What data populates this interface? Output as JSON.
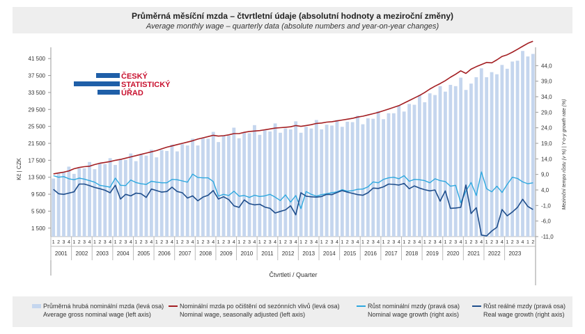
{
  "title": "Průměrná měsíční mzda – čtvrtletní údaje (absolutní hodnoty a meziroční změny)",
  "subtitle": "Average monthly wage – quarterly data (absolute numbers and year-on-year changes)",
  "logo": {
    "line1": "ČESKÝ",
    "line2": "STATISTICKÝ",
    "line3": "ÚŘAD"
  },
  "colors": {
    "bars": "#c5d6ee",
    "sa_line": "#a31e22",
    "nominal_growth": "#2ea8df",
    "real_growth": "#1f4e8c"
  },
  "chart_data": {
    "type": "bar+line",
    "years": [
      "2001",
      "2002",
      "2003",
      "2004",
      "2005",
      "2006",
      "2007",
      "2008",
      "2009",
      "2010",
      "2011",
      "2012",
      "2013",
      "2014",
      "2015",
      "2016",
      "2017",
      "2018",
      "2019",
      "2020",
      "2021",
      "2022",
      "2023"
    ],
    "quarter_labels": [
      "1",
      "2",
      "3",
      "4"
    ],
    "left_axis": {
      "label": "Kč | CZK",
      "ylim": [
        -500,
        43500
      ],
      "ticks": [
        "1 500",
        "5 500",
        "9 500",
        "13 500",
        "17 500",
        "21 500",
        "25 500",
        "29 500",
        "33 500",
        "37 500",
        "41 500"
      ]
    },
    "right_axis": {
      "label": "Meziroční tempo růstu (v %) | Y-o-y growth rate (%)",
      "ylim": [
        -11,
        49
      ],
      "ticks": [
        "-11,0",
        "-6,0",
        "-1,0",
        "4,0",
        "9,0",
        "14,0",
        "19,0",
        "24,0",
        "29,0",
        "34,0",
        "39,0",
        "44,0"
      ]
    },
    "xlabel": "Čtvrtletí / Quarter",
    "series": [
      {
        "name": "Průměrná hrubá nominální mzda (levá osa)",
        "name_en": "Average gross nominal wage (left axis)",
        "kind": "bar",
        "axis": "left",
        "values": [
          13200,
          14500,
          14700,
          16000,
          14300,
          15600,
          15600,
          17100,
          15400,
          16800,
          16600,
          18000,
          16400,
          17800,
          17600,
          19100,
          17300,
          18800,
          18600,
          20000,
          18200,
          19900,
          19700,
          21200,
          19600,
          21300,
          21000,
          22600,
          21000,
          22700,
          22600,
          24200,
          21800,
          23400,
          23300,
          25200,
          22700,
          24000,
          23900,
          25800,
          23500,
          24600,
          24300,
          26200,
          24000,
          25000,
          24800,
          26700,
          24000,
          25400,
          25000,
          27000,
          24800,
          25900,
          25700,
          27000,
          25400,
          26600,
          26500,
          28000,
          26000,
          27400,
          27300,
          29100,
          27200,
          28600,
          28600,
          30400,
          29000,
          30800,
          30600,
          32900,
          31200,
          33300,
          32900,
          35000,
          33700,
          35300,
          35000,
          37000,
          34100,
          35600,
          37100,
          39200,
          37100,
          38300,
          37800,
          40000,
          39100,
          40800,
          41000,
          43300,
          42000,
          42600
        ]
      },
      {
        "name": "Nominální mzda po očištění od sezónních vlivů (levá osa)",
        "name_en": "Nominal wage, seasonally adjusted (left axis)",
        "kind": "line",
        "axis": "left",
        "values": [
          14300,
          14500,
          14700,
          15000,
          15500,
          15800,
          16000,
          16100,
          16500,
          16800,
          17000,
          17200,
          17500,
          17700,
          18000,
          18300,
          18600,
          18900,
          19200,
          19500,
          19800,
          20200,
          20600,
          20900,
          21200,
          21500,
          21800,
          22100,
          22500,
          22800,
          23100,
          23400,
          23200,
          23300,
          23500,
          23800,
          23800,
          24100,
          24300,
          24400,
          24500,
          24700,
          24900,
          25100,
          25200,
          25300,
          25400,
          25700,
          25500,
          25700,
          25900,
          26200,
          26300,
          26500,
          26600,
          26800,
          27000,
          27200,
          27400,
          27700,
          27900,
          28200,
          28500,
          28800,
          29200,
          29600,
          30000,
          30400,
          31000,
          31600,
          32200,
          32800,
          33500,
          34300,
          35000,
          35600,
          36300,
          37100,
          37800,
          38600,
          38000,
          39000,
          39600,
          40100,
          40600,
          40500,
          41200,
          42000,
          42400,
          43000,
          43700,
          44400,
          45100,
          45600
        ]
      },
      {
        "name": "Růst nominální mzdy (pravá osa)",
        "name_en": "Nominal wage growth (right axis)",
        "kind": "line",
        "axis": "right",
        "values": [
          8.6,
          8.1,
          8.3,
          7.6,
          7.3,
          7.8,
          7.5,
          7.0,
          6.5,
          5.5,
          5.2,
          4.9,
          7.8,
          5.5,
          5.4,
          7.2,
          6.4,
          6.0,
          5.8,
          6.8,
          6.5,
          6.3,
          6.3,
          7.4,
          7.3,
          6.9,
          6.5,
          9.1,
          8.0,
          7.9,
          7.9,
          6.7,
          2.0,
          2.6,
          2.2,
          3.6,
          2.0,
          2.2,
          1.6,
          2.3,
          1.9,
          2.1,
          2.6,
          1.7,
          0.6,
          2.4,
          0.1,
          2.2,
          -2.0,
          3.5,
          2.6,
          2.0,
          2.5,
          2.8,
          3.1,
          3.4,
          4.1,
          3.6,
          3.8,
          4.2,
          4.3,
          5.0,
          6.6,
          6.3,
          7.4,
          7.9,
          8.1,
          7.6,
          8.6,
          6.8,
          7.4,
          7.3,
          7.0,
          6.3,
          7.6,
          7.0,
          6.7,
          5.2,
          5.5,
          -0.1,
          3.6,
          6.4,
          2.2,
          9.8,
          4.4,
          3.4,
          5.2,
          3.2,
          5.8,
          8.1,
          7.7,
          6.6,
          6.0,
          6.3
        ]
      },
      {
        "name": "Růst reálné mzdy (pravá osa)",
        "name_en": "Real wage growth (right axis)",
        "kind": "line",
        "axis": "right",
        "values": [
          4.2,
          2.8,
          2.6,
          3.0,
          3.4,
          5.9,
          5.9,
          5.4,
          4.8,
          4.4,
          3.9,
          3.1,
          5.5,
          1.1,
          2.6,
          2.1,
          3.0,
          2.8,
          1.6,
          4.3,
          3.8,
          3.3,
          3.5,
          4.9,
          3.5,
          3.1,
          1.4,
          2.1,
          0.5,
          1.7,
          2.3,
          3.8,
          1.1,
          1.8,
          0.9,
          -1.1,
          -1.6,
          0.8,
          -0.4,
          -0.8,
          -0.6,
          -1.5,
          -1.9,
          -3.4,
          -2.9,
          -2.4,
          -1.1,
          -4.0,
          3.1,
          2.0,
          1.8,
          1.7,
          1.9,
          2.6,
          2.5,
          3.2,
          3.8,
          3.3,
          2.9,
          2.5,
          2.3,
          3.1,
          4.6,
          4.5,
          5.0,
          5.9,
          5.8,
          5.6,
          6.1,
          4.4,
          5.3,
          4.6,
          4.1,
          3.7,
          4.0,
          0.4,
          3.7,
          -1.9,
          -1.8,
          -1.6,
          5.6,
          -3.6,
          -1.7,
          -10.5,
          -10.8,
          -9.2,
          -8.0,
          -2.3,
          -4.3,
          -3.1,
          -1.6,
          1.0,
          -1.3,
          -2.3
        ]
      }
    ],
    "legend": [
      {
        "cz": "Průměrná hrubá nominální mzda (levá osa)",
        "en": "Average gross nominal wage (left axis)"
      },
      {
        "cz": "Nominální mzda po očištění od sezónních vlivů (levá osa)",
        "en": "Nominal wage, seasonally adjusted (left axis)"
      },
      {
        "cz": "Růst nominální mzdy (pravá osa)",
        "en": "Nominal wage growth (right axis)"
      },
      {
        "cz": "Růst reálné mzdy (pravá osa)",
        "en": "Real wage growth (right axis)"
      }
    ]
  }
}
